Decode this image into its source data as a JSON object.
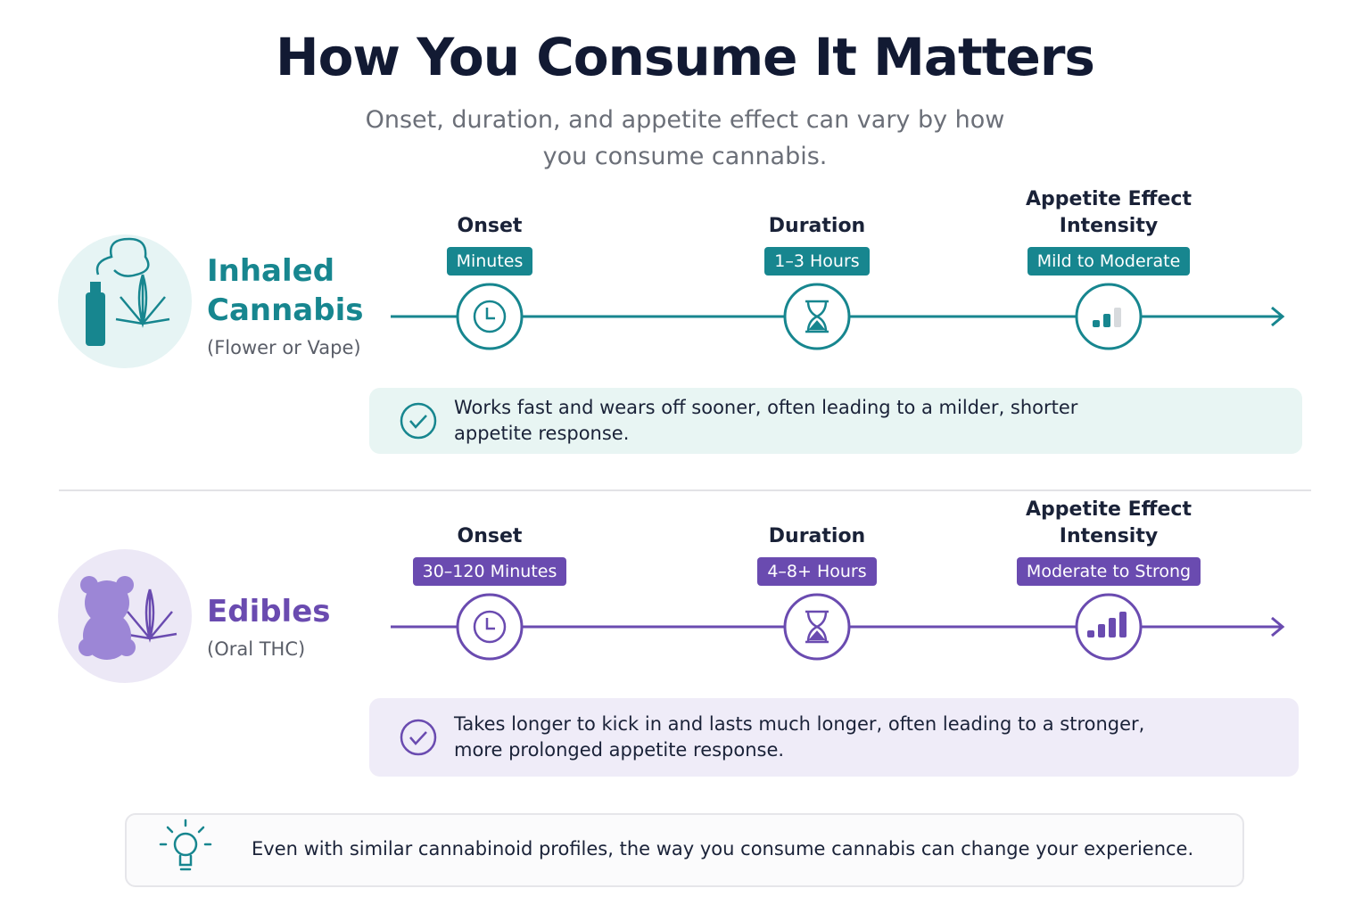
{
  "header": {
    "title": "How You Consume It Matters",
    "subtitle": "Onset, duration, and appetite effect can vary by how you consume cannabis."
  },
  "methods": [
    {
      "name": "Inhaled Cannabis",
      "subtitle": "(Flower or Vape)",
      "metrics": [
        {
          "label": "Onset",
          "value": "Minutes"
        },
        {
          "label": "Duration",
          "value": "1–3 Hours"
        },
        {
          "label": "Appetite Effect Intensity",
          "value": "Mild to Moderate"
        }
      ],
      "note": "Works fast and wears off sooner, often leading to a milder, shorter appetite response."
    },
    {
      "name": "Edibles",
      "subtitle": "(Oral THC)",
      "metrics": [
        {
          "label": "Onset",
          "value": "30–120 Minutes"
        },
        {
          "label": "Duration",
          "value": "4–8+ Hours"
        },
        {
          "label": "Appetite Effect Intensity",
          "value": "Moderate to Strong"
        }
      ],
      "note": "Takes longer to kick in and lasts much longer, often leading to a stronger, more prolonged appetite response."
    }
  ],
  "footer": {
    "tip": "Even with similar cannabinoid profiles, the way you consume cannabis can change your experience."
  }
}
